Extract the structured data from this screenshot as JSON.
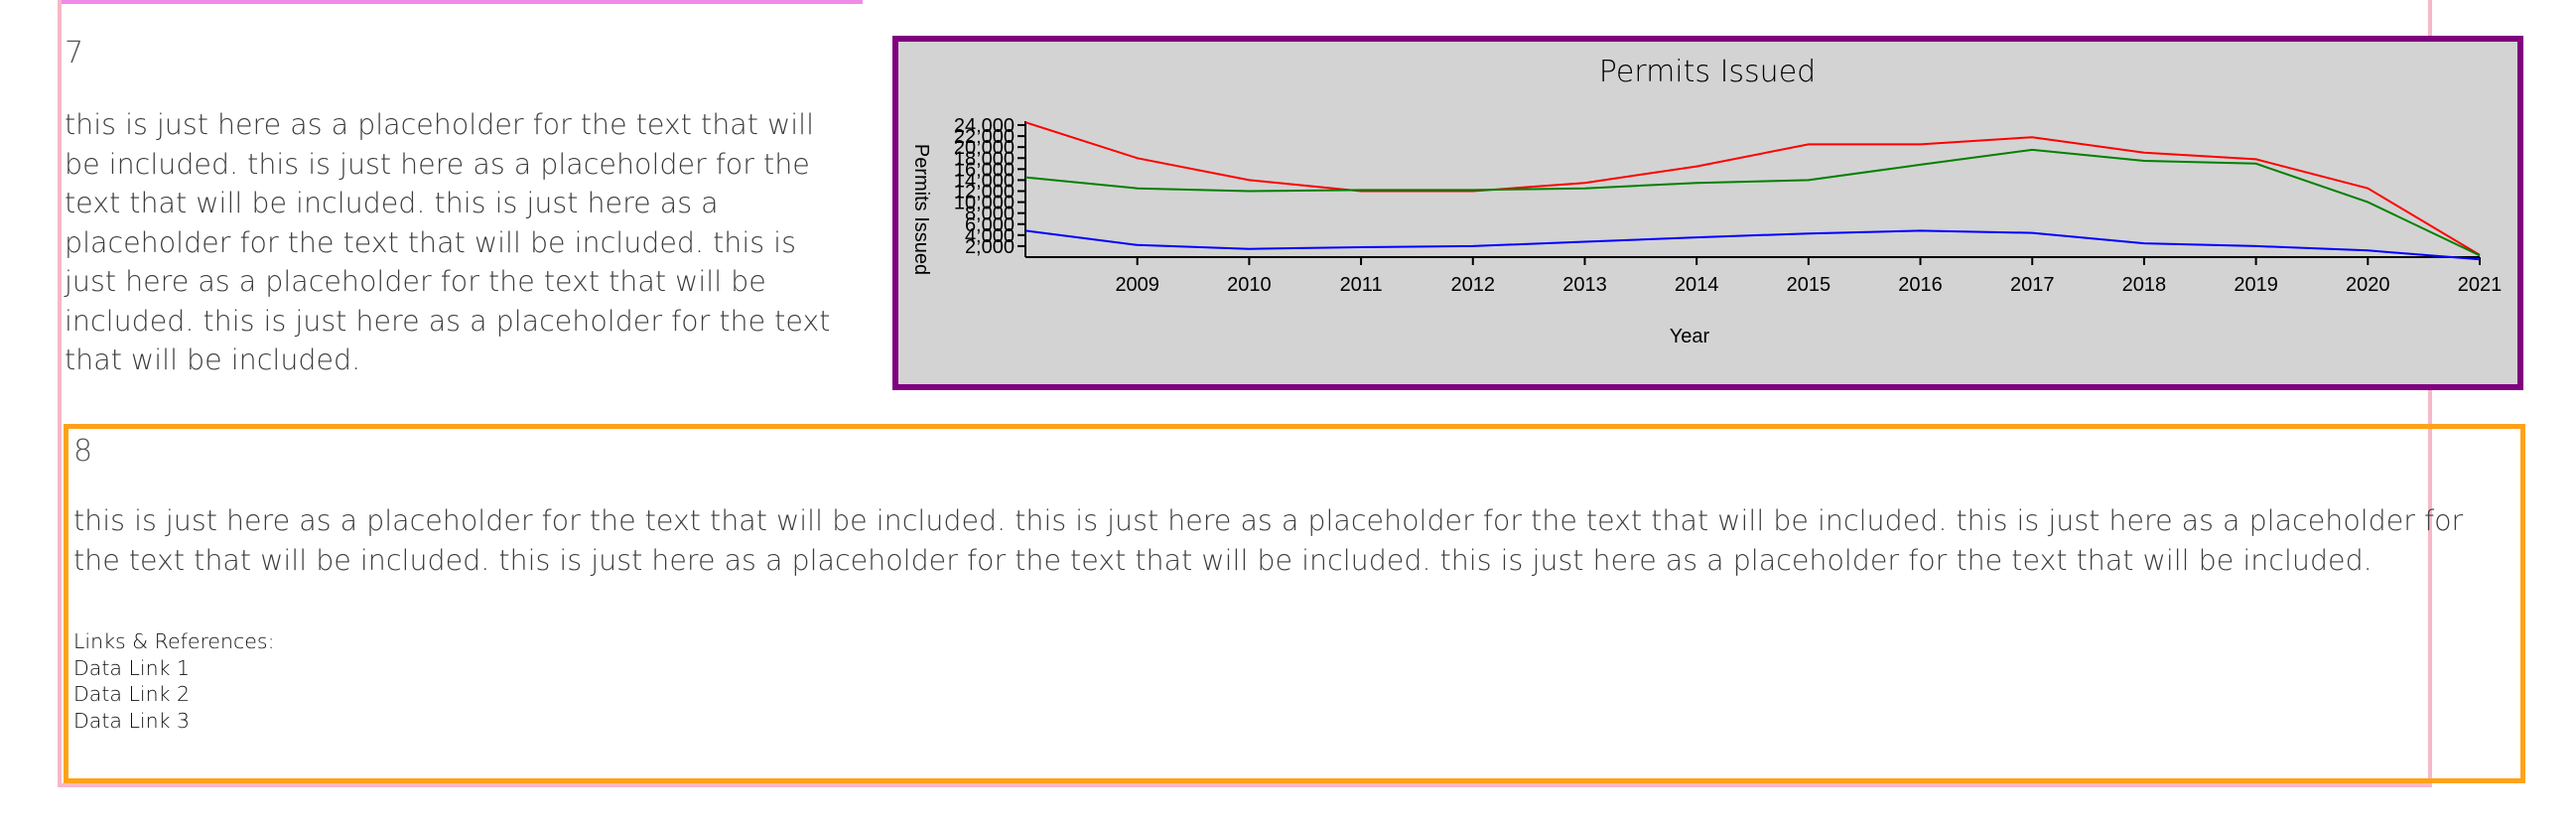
{
  "section7": {
    "number": "7",
    "text": "this is just here as a placeholder for the text that will be included. this is just here as a placeholder for the text that will be included. this is just here as a placeholder for the text that will be included. this is just here as a placeholder for the text that will be included. this is just here as a placeholder for the text that will be included."
  },
  "section8": {
    "number": "8",
    "text": "this is just here as a placeholder for the text that will be included. this is just here as a placeholder for the text that will be included. this is just here as a placeholder for the text that will be included. this is just here as a placeholder for the text that will be included. this is just here as a placeholder for the text that will be included.",
    "links_heading": "Links & References:",
    "links": [
      "Data Link 1",
      "Data Link 2",
      "Data Link 3"
    ]
  },
  "colors": {
    "chart_background": "#d3d3d3",
    "chart_border": "#800080",
    "section8_border": "#ffa21a",
    "outer_border": "#f6b8c8"
  },
  "chart_data": {
    "type": "line",
    "title": "Permits Issued",
    "xlabel": "Year",
    "ylabel": "Permits Issued",
    "x": [
      2008,
      2009,
      2010,
      2011,
      2012,
      2013,
      2014,
      2015,
      2016,
      2017,
      2018,
      2019,
      2020,
      2021
    ],
    "x_tick_labels": [
      "2009",
      "2010",
      "2011",
      "2012",
      "2013",
      "2014",
      "2015",
      "2016",
      "2017",
      "2018",
      "2019",
      "2020",
      "2021"
    ],
    "y_tick_labels": [
      "2,000",
      "4,000",
      "6,000",
      "8,000",
      "10,000",
      "12,000",
      "14,000",
      "16,000",
      "18,000",
      "20,000",
      "22,000",
      "24,000"
    ],
    "ylim": [
      0,
      24000
    ],
    "grid": false,
    "legend": "none",
    "series": [
      {
        "color": "#ff0000",
        "values": [
          24500,
          18000,
          14000,
          12000,
          12000,
          13500,
          16500,
          20500,
          20500,
          21800,
          19000,
          17800,
          12500,
          400
        ]
      },
      {
        "color": "#008000",
        "values": [
          14500,
          12500,
          12000,
          12200,
          12200,
          12500,
          13500,
          14000,
          16800,
          19500,
          17500,
          17000,
          10000,
          300
        ]
      },
      {
        "color": "#0000ff",
        "values": [
          4800,
          2200,
          1500,
          1800,
          2000,
          2800,
          3600,
          4300,
          4800,
          4400,
          2500,
          2000,
          1200,
          -400
        ]
      }
    ]
  }
}
